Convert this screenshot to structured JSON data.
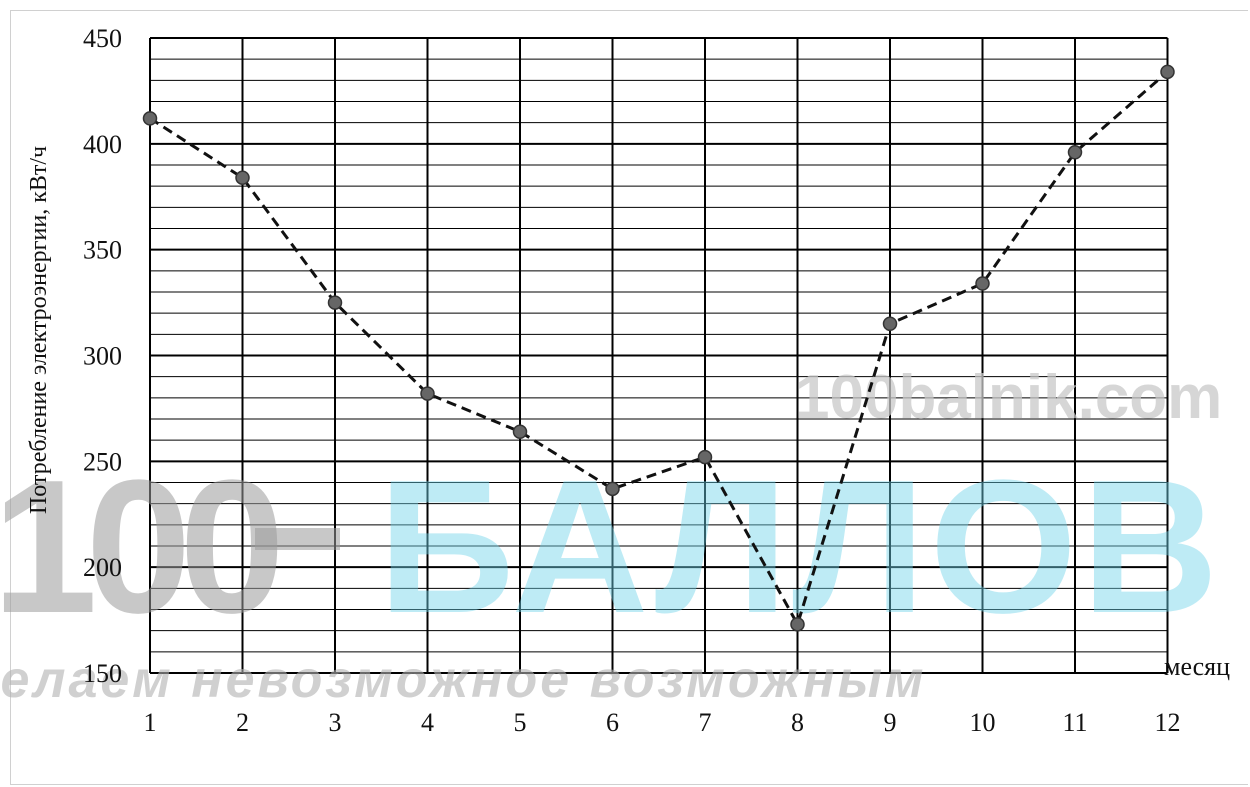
{
  "chart_data": {
    "type": "line",
    "ylabel": "Потребление электроэнергии, кВт/ч",
    "xlabel": "месяц",
    "categories": [
      "1",
      "2",
      "3",
      "4",
      "5",
      "6",
      "7",
      "8",
      "9",
      "10",
      "11",
      "12"
    ],
    "x": [
      1,
      2,
      3,
      4,
      5,
      6,
      7,
      8,
      9,
      10,
      11,
      12
    ],
    "values": [
      412,
      384,
      325,
      282,
      264,
      237,
      252,
      173,
      315,
      334,
      396,
      434
    ],
    "ylim": [
      150,
      450
    ],
    "yticks": [
      "150",
      "200",
      "250",
      "300",
      "350",
      "400",
      "450"
    ],
    "grid": true,
    "minor_grid_step": 10,
    "line_style": "dashed",
    "marker": "circle",
    "colors": {
      "line": "#111111",
      "marker": "#666666",
      "marker_edge": "#333333",
      "grid": "#000000"
    }
  },
  "watermark": {
    "site": "100balnik.com",
    "logo_digits": "100",
    "logo_word": "БАЛЛОВ",
    "slogan": "Делаем невозможное возможным",
    "colors": {
      "gray": "#9a9a9a",
      "cyan": "#6fd3e8",
      "site": "#c8c8c8"
    }
  }
}
